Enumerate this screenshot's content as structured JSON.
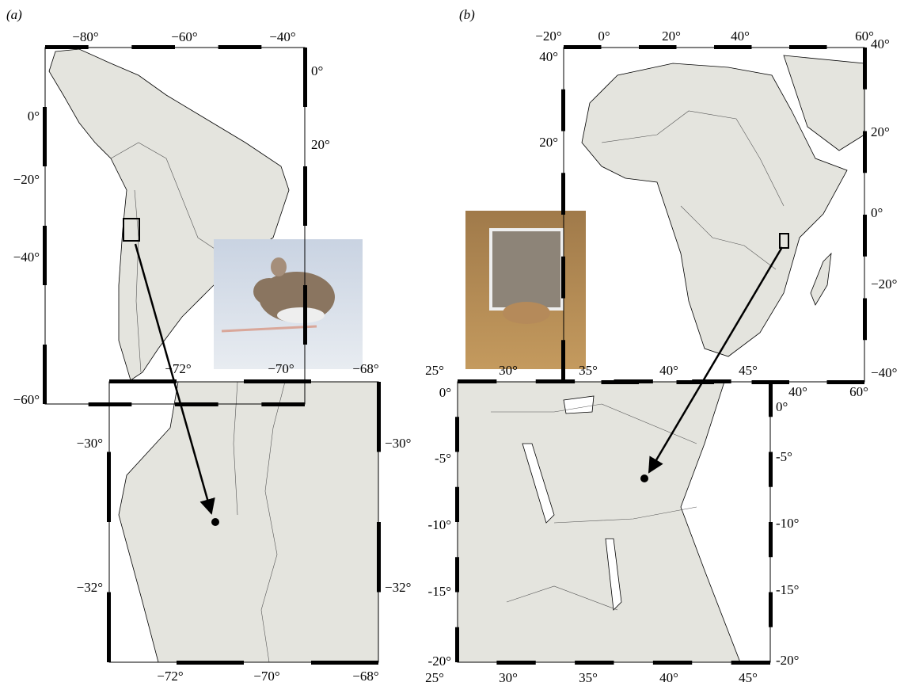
{
  "panels": [
    {
      "label": "(a)",
      "overview": {
        "top": [
          "−80°",
          "−60°",
          "−40°"
        ],
        "left": [
          "0°",
          "−20°",
          "−40°",
          "−60°"
        ],
        "right": [
          "0°",
          "20°"
        ]
      },
      "inset": {
        "top": [
          "−72°",
          "−70°",
          "−68°"
        ],
        "bottom": [
          "−72°",
          "−70°",
          "−68°"
        ],
        "left": [
          "−30°",
          "−32°"
        ],
        "right": [
          "−30°",
          "−32°"
        ]
      }
    },
    {
      "label": "(b)",
      "overview": {
        "top": [
          "−20°",
          "0°",
          "20°",
          "40°",
          "60°"
        ],
        "left": [
          "40°",
          "20°"
        ],
        "right": [
          "40°",
          "20°",
          "0°",
          "−20°",
          "−40°"
        ],
        "bottom": [
          "40°",
          "60°"
        ]
      },
      "inset": {
        "top": [
          "25°",
          "30°",
          "35°",
          "40°",
          "45°"
        ],
        "bottom": [
          "25°",
          "30°",
          "35°",
          "40°",
          "45°"
        ],
        "left": [
          "0°",
          "-5°",
          "-10°",
          "-15°",
          "-20°"
        ],
        "right": [
          "0°",
          "-5°",
          "-10°",
          "-15°",
          "-20°"
        ]
      }
    }
  ]
}
